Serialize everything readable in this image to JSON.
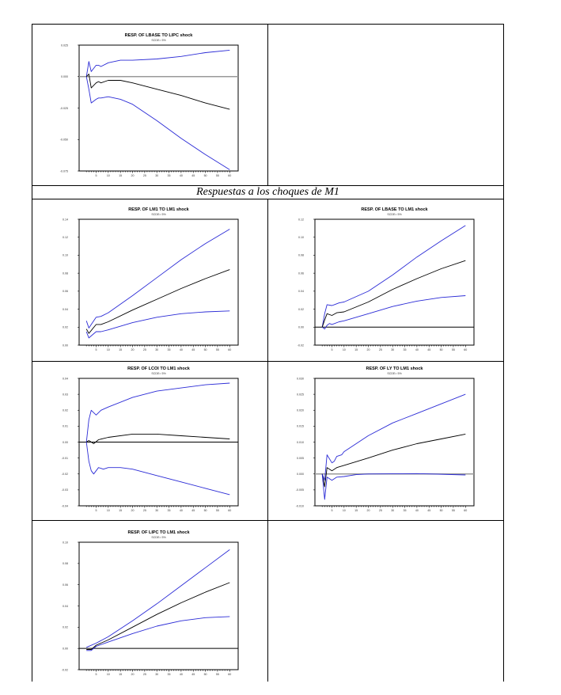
{
  "section_heading": "Respuestas a los choques de M1",
  "x_ticks": [
    "5",
    "10",
    "15",
    "20",
    "25",
    "30",
    "35",
    "40",
    "45",
    "50",
    "55",
    "60"
  ],
  "colors": {
    "band": "#2b2bd6",
    "response": "#000000",
    "zero_gray": "#999999",
    "zero_black": "#000000"
  },
  "chart_data": [
    {
      "type": "line",
      "title": "RESP. OF LBASE TO LIPC shock",
      "subtitle": "SCDE= 5%",
      "ylim": [
        -0.075,
        0.025
      ],
      "xlim": [
        1,
        60
      ],
      "yticks": [
        {
          "v": 0.025,
          "label": "0.025"
        },
        {
          "v": 0,
          "label": "0.000"
        },
        {
          "v": -0.025,
          "label": "-0.025"
        },
        {
          "v": -0.05,
          "label": "-0.050"
        },
        {
          "v": -0.075,
          "label": "-0.075"
        }
      ],
      "zero_line": "gray",
      "series": [
        {
          "name": "upper",
          "x": [
            1,
            2,
            3,
            5,
            6,
            7,
            10,
            15,
            20,
            30,
            40,
            50,
            60
          ],
          "y": [
            0,
            0.012,
            0.004,
            0.009,
            0.009,
            0.008,
            0.011,
            0.013,
            0.013,
            0.014,
            0.016,
            0.019,
            0.021
          ]
        },
        {
          "name": "response",
          "x": [
            1,
            2,
            3,
            5,
            6,
            7,
            10,
            15,
            20,
            30,
            40,
            50,
            60
          ],
          "y": [
            0,
            0.002,
            -0.009,
            -0.005,
            -0.004,
            -0.005,
            -0.003,
            -0.003,
            -0.005,
            -0.01,
            -0.015,
            -0.021,
            -0.026
          ]
        },
        {
          "name": "lower",
          "x": [
            1,
            2,
            3,
            5,
            6,
            7,
            10,
            15,
            20,
            30,
            40,
            50,
            60
          ],
          "y": [
            0,
            -0.01,
            -0.021,
            -0.018,
            -0.017,
            -0.017,
            -0.016,
            -0.018,
            -0.022,
            -0.035,
            -0.049,
            -0.062,
            -0.074
          ]
        }
      ]
    },
    {
      "type": "line",
      "title": "RESP. OF LM1 TO LM1 shock",
      "subtitle": "SCDE= 5%",
      "ylim": [
        0,
        0.14
      ],
      "xlim": [
        1,
        60
      ],
      "yticks": [
        {
          "v": 0.14,
          "label": "0.14"
        },
        {
          "v": 0.12,
          "label": "0.12"
        },
        {
          "v": 0.1,
          "label": "0.10"
        },
        {
          "v": 0.08,
          "label": "0.08"
        },
        {
          "v": 0.06,
          "label": "0.06"
        },
        {
          "v": 0.04,
          "label": "0.04"
        },
        {
          "v": 0.02,
          "label": "0.02"
        },
        {
          "v": 0,
          "label": "0.00"
        }
      ],
      "zero_line": "none",
      "series": [
        {
          "name": "upper",
          "x": [
            1,
            2,
            5,
            7,
            10,
            20,
            30,
            40,
            50,
            60
          ],
          "y": [
            0.027,
            0.019,
            0.031,
            0.032,
            0.036,
            0.055,
            0.075,
            0.095,
            0.113,
            0.129
          ]
        },
        {
          "name": "response",
          "x": [
            1,
            2,
            5,
            7,
            10,
            20,
            30,
            40,
            50,
            60
          ],
          "y": [
            0.018,
            0.013,
            0.023,
            0.023,
            0.026,
            0.039,
            0.051,
            0.063,
            0.074,
            0.084
          ]
        },
        {
          "name": "lower",
          "x": [
            1,
            2,
            5,
            7,
            10,
            20,
            30,
            40,
            50,
            60
          ],
          "y": [
            0.015,
            0.008,
            0.015,
            0.015,
            0.017,
            0.025,
            0.031,
            0.035,
            0.037,
            0.038
          ]
        }
      ]
    },
    {
      "type": "line",
      "title": "RESP. OF LBASE TO LM1 shock",
      "subtitle": "SCDE= 5%",
      "ylim": [
        -0.02,
        0.12
      ],
      "xlim": [
        1,
        60
      ],
      "yticks": [
        {
          "v": 0.12,
          "label": "0.12"
        },
        {
          "v": 0.1,
          "label": "0.10"
        },
        {
          "v": 0.08,
          "label": "0.08"
        },
        {
          "v": 0.06,
          "label": "0.06"
        },
        {
          "v": 0.04,
          "label": "0.04"
        },
        {
          "v": 0.02,
          "label": "0.02"
        },
        {
          "v": 0,
          "label": "0.00"
        },
        {
          "v": -0.02,
          "label": "-0.02"
        }
      ],
      "zero_line": "black",
      "series": [
        {
          "name": "upper",
          "x": [
            1,
            2,
            3,
            5,
            6,
            8,
            10,
            20,
            30,
            40,
            50,
            60
          ],
          "y": [
            0,
            0.015,
            0.025,
            0.024,
            0.025,
            0.027,
            0.028,
            0.04,
            0.058,
            0.078,
            0.096,
            0.113
          ]
        },
        {
          "name": "response",
          "x": [
            1,
            2,
            3,
            5,
            7,
            10,
            20,
            30,
            40,
            50,
            60
          ],
          "y": [
            0,
            0.008,
            0.015,
            0.013,
            0.016,
            0.017,
            0.028,
            0.042,
            0.054,
            0.065,
            0.074
          ]
        },
        {
          "name": "lower",
          "x": [
            1,
            2,
            3,
            4,
            5,
            8,
            10,
            20,
            30,
            40,
            50,
            60
          ],
          "y": [
            0,
            -0.002,
            0.002,
            0.004,
            0.003,
            0.006,
            0.007,
            0.015,
            0.023,
            0.029,
            0.033,
            0.035
          ]
        }
      ]
    },
    {
      "type": "line",
      "title": "RESP. OF LCOI TO LM1 shock",
      "subtitle": "SCDE= 5%",
      "ylim": [
        -0.04,
        0.04
      ],
      "xlim": [
        1,
        60
      ],
      "yticks": [
        {
          "v": 0.04,
          "label": "0.04"
        },
        {
          "v": 0.03,
          "label": "0.03"
        },
        {
          "v": 0.02,
          "label": "0.02"
        },
        {
          "v": 0.01,
          "label": "0.01"
        },
        {
          "v": 0,
          "label": "0.00"
        },
        {
          "v": -0.01,
          "label": "-0.01"
        },
        {
          "v": -0.02,
          "label": "-0.02"
        },
        {
          "v": -0.03,
          "label": "-0.03"
        },
        {
          "v": -0.04,
          "label": "-0.04"
        }
      ],
      "zero_line": "black",
      "series": [
        {
          "name": "upper",
          "x": [
            1,
            2,
            3,
            5,
            7,
            10,
            20,
            30,
            40,
            50,
            60
          ],
          "y": [
            0,
            0.014,
            0.02,
            0.017,
            0.02,
            0.022,
            0.028,
            0.032,
            0.034,
            0.036,
            0.037
          ]
        },
        {
          "name": "response",
          "x": [
            1,
            2,
            4,
            6,
            10,
            20,
            30,
            40,
            50,
            60
          ],
          "y": [
            0,
            0.001,
            -0.001,
            0.0015,
            0.003,
            0.005,
            0.005,
            0.004,
            0.003,
            0.002
          ]
        },
        {
          "name": "lower",
          "x": [
            1,
            2,
            3,
            4,
            6,
            8,
            10,
            15,
            20,
            30,
            40,
            50,
            60
          ],
          "y": [
            0,
            -0.012,
            -0.018,
            -0.02,
            -0.016,
            -0.017,
            -0.016,
            -0.016,
            -0.017,
            -0.021,
            -0.025,
            -0.029,
            -0.033
          ]
        }
      ]
    },
    {
      "type": "line",
      "title": "RESP. OF LY TO LM1 shock",
      "subtitle": "SCDE= 5%",
      "ylim": [
        -0.01,
        0.03
      ],
      "xlim": [
        1,
        60
      ],
      "yticks": [
        {
          "v": 0.03,
          "label": "0.030"
        },
        {
          "v": 0.025,
          "label": "0.025"
        },
        {
          "v": 0.02,
          "label": "0.020"
        },
        {
          "v": 0.015,
          "label": "0.015"
        },
        {
          "v": 0.01,
          "label": "0.010"
        },
        {
          "v": 0.005,
          "label": "0.005"
        },
        {
          "v": 0,
          "label": "0.000"
        },
        {
          "v": -0.005,
          "label": "-0.005"
        },
        {
          "v": -0.01,
          "label": "-0.010"
        }
      ],
      "zero_line": "gray",
      "series": [
        {
          "name": "upper",
          "x": [
            1,
            2,
            3,
            5,
            6,
            7,
            9,
            10,
            20,
            30,
            40,
            50,
            60
          ],
          "y": [
            0,
            -0.002,
            0.006,
            0.0035,
            0.004,
            0.0055,
            0.006,
            0.007,
            0.012,
            0.016,
            0.019,
            0.022,
            0.025
          ]
        },
        {
          "name": "response",
          "x": [
            1,
            2,
            3,
            5,
            7,
            10,
            20,
            30,
            40,
            50,
            60
          ],
          "y": [
            0,
            -0.004,
            0.002,
            0.001,
            0.002,
            0.0027,
            0.005,
            0.0075,
            0.0095,
            0.011,
            0.0125
          ]
        },
        {
          "name": "lower",
          "x": [
            1,
            2,
            3,
            5,
            7,
            10,
            15,
            20,
            40,
            60
          ],
          "y": [
            0,
            -0.008,
            -0.001,
            -0.002,
            -0.001,
            -0.0008,
            -0.0002,
            0,
            0.0001,
            -0.0003
          ]
        }
      ]
    },
    {
      "type": "line",
      "title": "RESP. OF LIPC TO LM1 shock",
      "subtitle": "SCDE= 5%",
      "ylim": [
        -0.02,
        0.1
      ],
      "xlim": [
        1,
        60
      ],
      "yticks": [
        {
          "v": 0.1,
          "label": "0.10"
        },
        {
          "v": 0.08,
          "label": "0.08"
        },
        {
          "v": 0.06,
          "label": "0.06"
        },
        {
          "v": 0.04,
          "label": "0.04"
        },
        {
          "v": 0.02,
          "label": "0.02"
        },
        {
          "v": 0,
          "label": "0.00"
        },
        {
          "v": -0.02,
          "label": "-0.02"
        }
      ],
      "zero_line": "black",
      "series": [
        {
          "name": "upper",
          "x": [
            1,
            5,
            10,
            20,
            30,
            40,
            50,
            60
          ],
          "y": [
            0.001,
            0.005,
            0.011,
            0.026,
            0.042,
            0.059,
            0.076,
            0.093
          ]
        },
        {
          "name": "response",
          "x": [
            1,
            3,
            5,
            10,
            20,
            30,
            40,
            50,
            60
          ],
          "y": [
            -0.001,
            -0.001,
            0.003,
            0.008,
            0.02,
            0.032,
            0.043,
            0.053,
            0.062
          ]
        },
        {
          "name": "lower",
          "x": [
            1,
            3,
            5,
            10,
            20,
            30,
            40,
            50,
            60
          ],
          "y": [
            -0.002,
            -0.002,
            0.002,
            0.006,
            0.014,
            0.021,
            0.026,
            0.029,
            0.03
          ]
        }
      ]
    }
  ]
}
